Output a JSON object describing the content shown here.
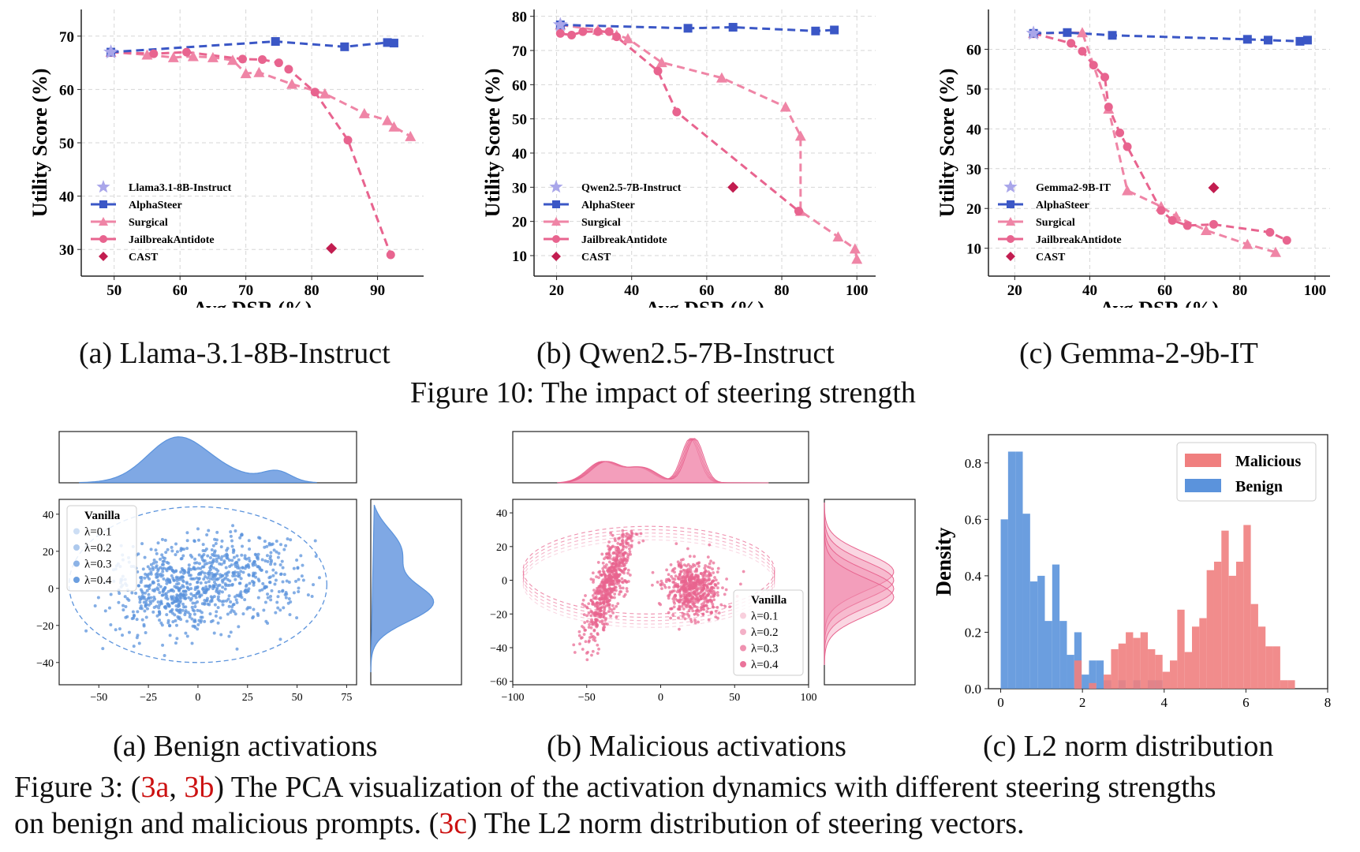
{
  "figure10": {
    "caption": "Figure 10: The impact of steering strength",
    "charts": [
      {
        "caption": "(a) Llama-3.1-8B-Instruct",
        "xlabel": "Avg DSR (%)",
        "ylabel": "Utility Score (%)",
        "xlim": [
          45,
          97
        ],
        "ylim": [
          25,
          75
        ],
        "xticks": [
          50,
          60,
          70,
          80,
          90
        ],
        "yticks": [
          30,
          40,
          50,
          60,
          70
        ],
        "legend": [
          "Llama3.1-8B-Instruct",
          "AlphaSteer",
          "Surgical",
          "JailbreakAntidote",
          "CAST"
        ],
        "base": [
          49.5,
          67
        ],
        "alphasteer": [
          [
            49.5,
            67
          ],
          [
            74.5,
            69
          ],
          [
            85,
            68
          ],
          [
            91.5,
            68.8
          ],
          [
            92.5,
            68.7
          ]
        ],
        "surgical": [
          [
            49.5,
            67
          ],
          [
            55,
            66.5
          ],
          [
            59,
            66
          ],
          [
            62,
            66.2
          ],
          [
            65,
            66
          ],
          [
            68,
            65.5
          ],
          [
            70,
            63
          ],
          [
            72,
            63.2
          ],
          [
            77,
            61
          ],
          [
            82,
            59.2
          ],
          [
            88,
            55.5
          ],
          [
            91.5,
            54.2
          ],
          [
            92.5,
            53
          ],
          [
            95,
            51.2
          ]
        ],
        "jailbreak": [
          [
            49.5,
            67
          ],
          [
            56,
            66.7
          ],
          [
            61,
            67
          ],
          [
            69.5,
            65.7
          ],
          [
            72.5,
            65.6
          ],
          [
            75,
            65
          ],
          [
            76.5,
            63.8
          ],
          [
            80.5,
            59.5
          ],
          [
            85.5,
            50.5
          ],
          [
            92,
            29
          ]
        ],
        "cast": [
          [
            83,
            30.2
          ]
        ]
      },
      {
        "caption": "(b) Qwen2.5-7B-Instruct",
        "xlabel": "Avg DSR (%)",
        "ylabel": "Utility Score (%)",
        "xlim": [
          14,
          105
        ],
        "ylim": [
          4,
          82
        ],
        "xticks": [
          20,
          40,
          60,
          80,
          100
        ],
        "yticks": [
          10,
          20,
          30,
          40,
          50,
          60,
          70,
          80
        ],
        "legend": [
          "Qwen2.5-7B-Instruct",
          "AlphaSteer",
          "Surgical",
          "JailbreakAntidote",
          "CAST"
        ],
        "base": [
          21,
          77.5
        ],
        "alphasteer": [
          [
            21,
            77.5
          ],
          [
            55,
            76.5
          ],
          [
            67,
            76.8
          ],
          [
            89,
            75.7
          ],
          [
            94,
            76
          ]
        ],
        "surgical": [
          [
            21,
            77.5
          ],
          [
            31,
            76
          ],
          [
            36,
            74.5
          ],
          [
            39,
            73.5
          ],
          [
            48,
            66.5
          ],
          [
            64,
            62
          ],
          [
            81,
            53.5
          ],
          [
            85,
            45
          ],
          [
            85,
            23
          ],
          [
            95,
            15.5
          ],
          [
            99.5,
            12
          ],
          [
            100,
            9
          ]
        ],
        "jailbreak": [
          [
            21,
            75
          ],
          [
            24,
            74.5
          ],
          [
            27,
            75.5
          ],
          [
            31,
            75.5
          ],
          [
            34,
            75.5
          ],
          [
            36,
            74
          ],
          [
            47,
            64
          ],
          [
            52,
            52
          ],
          [
            84.5,
            23
          ]
        ],
        "cast": [
          [
            67,
            30
          ]
        ]
      },
      {
        "caption": "(c) Gemma-2-9b-IT",
        "xlabel": "Avg DSR (%)",
        "ylabel": "Utility Score (%)",
        "xlim": [
          13,
          104
        ],
        "ylim": [
          3,
          70
        ],
        "xticks": [
          20,
          40,
          60,
          80,
          100
        ],
        "yticks": [
          10,
          20,
          30,
          40,
          50,
          60
        ],
        "legend": [
          "Gemma2-9B-IT",
          "AlphaSteer",
          "Surgical",
          "JailbreakAntidote",
          "CAST"
        ],
        "base": [
          25,
          64
        ],
        "alphasteer": [
          [
            25,
            64
          ],
          [
            34,
            64.2
          ],
          [
            46,
            63.5
          ],
          [
            82,
            62.5
          ],
          [
            87.5,
            62.3
          ],
          [
            96,
            62
          ],
          [
            98,
            62.3
          ]
        ],
        "surgical": [
          [
            25,
            64
          ],
          [
            38,
            64.2
          ],
          [
            45,
            45
          ],
          [
            50,
            24.5
          ],
          [
            59,
            20.5
          ],
          [
            63,
            18
          ],
          [
            71,
            14.5
          ],
          [
            82,
            11
          ],
          [
            89.5,
            9
          ]
        ],
        "jailbreak": [
          [
            25,
            64
          ],
          [
            35,
            61.5
          ],
          [
            38,
            59.5
          ],
          [
            41,
            56
          ],
          [
            44,
            53
          ],
          [
            45,
            45.5
          ],
          [
            48,
            39
          ],
          [
            50,
            35.5
          ],
          [
            59,
            19.5
          ],
          [
            62,
            17
          ],
          [
            66,
            15.7
          ],
          [
            73,
            16
          ],
          [
            88,
            14
          ],
          [
            92.5,
            12
          ]
        ],
        "cast": [
          [
            73,
            25.2
          ]
        ]
      }
    ]
  },
  "figure3": {
    "caption_parts": {
      "prefix": "Figure 3: (",
      "ref1": "3a",
      "comma": ", ",
      "ref2": "3b",
      "mid": ") The PCA visualization of the activation dynamics with different steering strengths",
      "line2_prefix": "on benign and malicious prompts. (",
      "ref3": "3c",
      "suffix": ") The L2 norm distribution of steering vectors."
    },
    "benign": {
      "caption": "(a) Benign activations",
      "xticks": [
        -50,
        -25,
        0,
        25,
        50,
        75
      ],
      "yticks": [
        40,
        20,
        0,
        -20,
        -40
      ],
      "xlim": [
        -70,
        80
      ],
      "ylim": [
        -52,
        48
      ],
      "legend": [
        "Vanilla",
        "λ=0.1",
        "λ=0.2",
        "λ=0.3",
        "λ=0.4"
      ]
    },
    "malicious": {
      "caption": "(b) Malicious activations",
      "xticks": [
        -100,
        -50,
        0,
        50,
        100
      ],
      "yticks": [
        40,
        20,
        0,
        -20,
        -40,
        -60
      ],
      "xlim": [
        -100,
        100
      ],
      "ylim": [
        -62,
        48
      ],
      "legend": [
        "Vanilla",
        "λ=0.1",
        "λ=0.2",
        "λ=0.3",
        "λ=0.4"
      ]
    },
    "chart_data": {
      "type": "bar",
      "title": "(c) L2 norm distribution",
      "xlabel": "",
      "ylabel": "Density",
      "xlim": [
        -0.3,
        8
      ],
      "ylim": [
        0,
        0.9
      ],
      "xticks": [
        0,
        2,
        4,
        6,
        8
      ],
      "yticks": [
        0.0,
        0.2,
        0.4,
        0.6,
        0.8
      ],
      "bin_width": 0.18,
      "series": [
        {
          "name": "Benign",
          "color": "#5b93dc",
          "bins": [
            [
              0.0,
              0.6
            ],
            [
              0.18,
              0.84
            ],
            [
              0.36,
              0.84
            ],
            [
              0.54,
              0.62
            ],
            [
              0.72,
              0.38
            ],
            [
              0.9,
              0.4
            ],
            [
              1.08,
              0.24
            ],
            [
              1.26,
              0.44
            ],
            [
              1.44,
              0.24
            ],
            [
              1.62,
              0.12
            ],
            [
              1.8,
              0.2
            ],
            [
              1.98,
              0.05
            ],
            [
              2.16,
              0.1
            ],
            [
              2.34,
              0.1
            ],
            [
              2.52,
              0.03
            ],
            [
              2.88,
              0.03
            ],
            [
              3.24,
              0.03
            ],
            [
              3.6,
              0.03
            ],
            [
              3.78,
              0.03
            ]
          ]
        },
        {
          "name": "Malicious",
          "color": "#f07f7f",
          "bins": [
            [
              1.8,
              0.1
            ],
            [
              2.16,
              0.02
            ],
            [
              2.52,
              0.05
            ],
            [
              2.7,
              0.14
            ],
            [
              2.88,
              0.16
            ],
            [
              3.06,
              0.2
            ],
            [
              3.24,
              0.18
            ],
            [
              3.42,
              0.2
            ],
            [
              3.6,
              0.14
            ],
            [
              3.78,
              0.12
            ],
            [
              3.96,
              0.06
            ],
            [
              4.14,
              0.1
            ],
            [
              4.32,
              0.28
            ],
            [
              4.5,
              0.13
            ],
            [
              4.68,
              0.22
            ],
            [
              4.86,
              0.25
            ],
            [
              5.04,
              0.42
            ],
            [
              5.22,
              0.45
            ],
            [
              5.4,
              0.56
            ],
            [
              5.58,
              0.4
            ],
            [
              5.76,
              0.45
            ],
            [
              5.94,
              0.58
            ],
            [
              6.12,
              0.3
            ],
            [
              6.3,
              0.22
            ],
            [
              6.48,
              0.15
            ],
            [
              6.66,
              0.15
            ],
            [
              6.84,
              0.03
            ],
            [
              7.02,
              0.03
            ]
          ]
        }
      ],
      "legend": [
        "Malicious",
        "Benign"
      ]
    }
  }
}
